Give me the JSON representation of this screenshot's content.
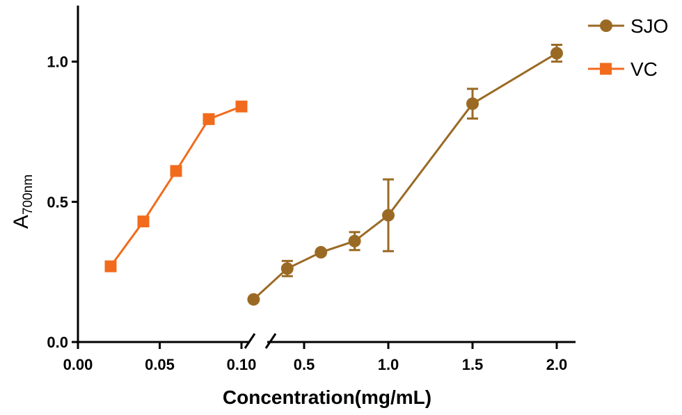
{
  "chart_data": {
    "type": "line",
    "xlabel": "Concentration(mg/mL)",
    "ylabel_main": "A",
    "ylabel_sub": "700nm",
    "ylim": [
      0,
      1.2
    ],
    "yticks": [
      "0.0",
      "0.5",
      "1.0"
    ],
    "ytick_values": [
      0,
      0.5,
      1.0
    ],
    "x_axis_broken": true,
    "segments": [
      {
        "range": [
          0,
          0.1
        ],
        "ticks": [
          "0.00",
          "0.05",
          "0.10"
        ],
        "tick_values": [
          0,
          0.05,
          0.1
        ]
      },
      {
        "range": [
          0.1,
          2.0
        ],
        "ticks": [
          "0.5",
          "1.0",
          "1.5",
          "2.0"
        ],
        "tick_values": [
          0.5,
          1.0,
          1.5,
          2.0
        ]
      }
    ],
    "series": [
      {
        "name": "VC",
        "color": "#F26B1D",
        "marker": "square",
        "segment": 0,
        "x": [
          0.02,
          0.04,
          0.06,
          0.08,
          0.1
        ],
        "y": [
          0.27,
          0.43,
          0.61,
          0.795,
          0.84
        ],
        "err": [
          0,
          0,
          0,
          0,
          0
        ]
      },
      {
        "name": "SJO",
        "color": "#9A6A24",
        "marker": "circle",
        "segment": 1,
        "x": [
          0.2,
          0.4,
          0.6,
          0.8,
          1.0,
          1.5,
          2.0
        ],
        "y": [
          0.152,
          0.262,
          0.32,
          0.36,
          0.452,
          0.85,
          1.03
        ],
        "err": [
          0,
          0.027,
          0,
          0.032,
          0.128,
          0.053,
          0.03
        ]
      }
    ],
    "legend_position": "top-right",
    "grid": false
  }
}
